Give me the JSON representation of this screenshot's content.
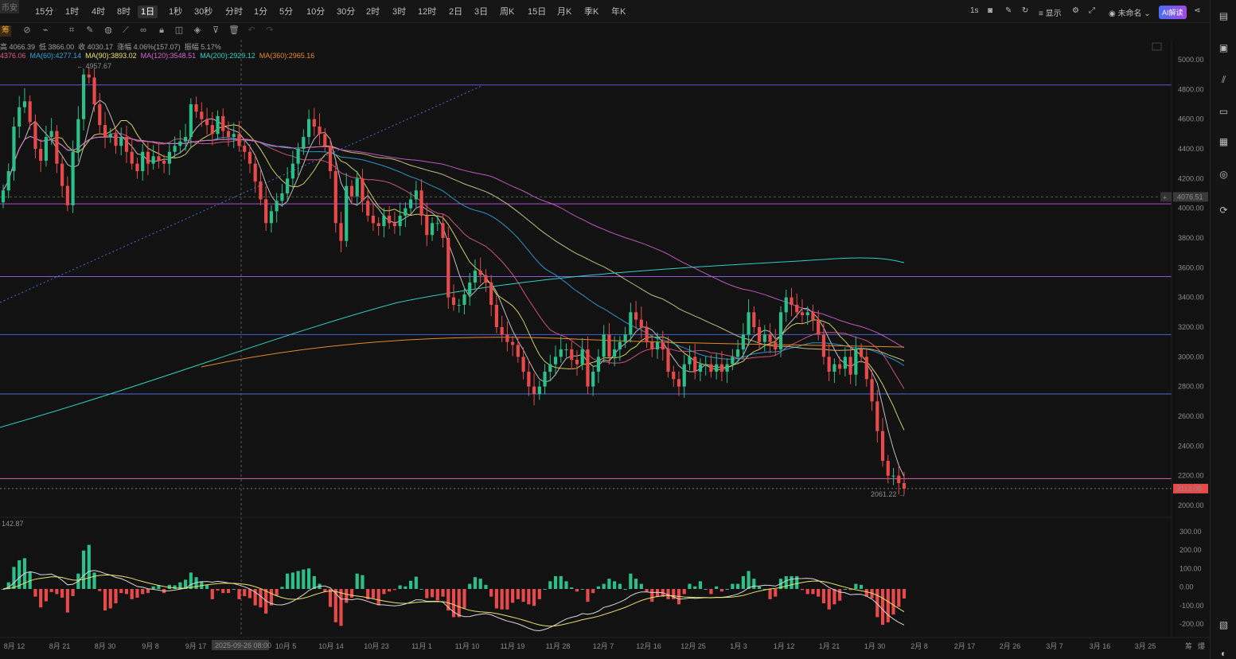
{
  "corner_label": "币安",
  "timeframes": [
    "15分",
    "1时",
    "4时",
    "8时",
    "1日",
    "1秒",
    "30秒",
    "分时",
    "1分",
    "5分",
    "10分",
    "30分",
    "2时",
    "3时",
    "12时",
    "2日",
    "3日",
    "周K",
    "15日",
    "月K",
    "季K",
    "年K"
  ],
  "active_timeframe": "1日",
  "right_tools": {
    "interval": "1s",
    "display": "显示",
    "layout_name": "未命名",
    "ai_label": "AI解读"
  },
  "chou_label": "筹",
  "ohlc_line": [
    "高 4066.39",
    "低 3866.00",
    "收 4030.17",
    "涨幅 4.06%(157.07)",
    "振幅 5.17%"
  ],
  "ma_line": [
    {
      "text": "4376.06",
      "color": "#e05a8a"
    },
    {
      "text": "MA(60):4277.14",
      "color": "#2fa3d6"
    },
    {
      "text": "MA(90):3893.02",
      "color": "#e8e36a"
    },
    {
      "text": "MA(120):3548.51",
      "color": "#d062d0"
    },
    {
      "text": "MA(200):2929.12",
      "color": "#2ed0c0"
    },
    {
      "text": "MA(360):2965.16",
      "color": "#e8882a"
    }
  ],
  "price_axis": [
    "5000.00",
    "4800.00",
    "4600.00",
    "4400.00",
    "4200.00",
    "4000.00",
    "3800.00",
    "3600.00",
    "3400.00",
    "3200.00",
    "3000.00",
    "2800.00",
    "2600.00",
    "2400.00",
    "2200.00",
    "2000.00"
  ],
  "price_tags": {
    "hover_price": "4076.51",
    "current_price": "2113.06"
  },
  "annotations": {
    "high": "4957.67",
    "low": "2061.22"
  },
  "crosshair_time": "2025-09-26 08:00",
  "macd_label": "142.87",
  "macd_axis": [
    "300.00",
    "200.00",
    "100.00",
    "0.00",
    "-100.00",
    "-200.00"
  ],
  "date_axis": [
    "8月 12",
    "8月 21",
    "8月 30",
    "9月 8",
    "9月 17",
    "10月 5",
    "10月 14",
    "10月 23",
    "11月 1",
    "11月 10",
    "11月 19",
    "11月 28",
    "12月 7",
    "12月 16",
    "12月 25",
    "1月 3",
    "1月 12",
    "1月 21",
    "1月 30",
    "2月 8",
    "2月 17",
    "2月 26",
    "3月 7",
    "3月 16",
    "3月 25"
  ],
  "bottom_right": [
    "筹",
    "爆"
  ],
  "colors": {
    "up": "#2bc08a",
    "down": "#e84a4a",
    "bg": "#121212"
  },
  "chart_data": {
    "type": "candlestick",
    "x_range": [
      "8月 8",
      "2月 3"
    ],
    "ylim": [
      2000,
      5000
    ],
    "horizontal_levels": [
      4830,
      4030,
      3540,
      3150,
      2750,
      2180
    ],
    "candles_close": [
      4120,
      4250,
      4550,
      4680,
      4720,
      4580,
      4400,
      4320,
      4480,
      4520,
      4300,
      4150,
      4020,
      4380,
      4600,
      4900,
      4880,
      4700,
      4560,
      4480,
      4500,
      4420,
      4480,
      4380,
      4300,
      4250,
      4380,
      4300,
      4350,
      4320,
      4300,
      4380,
      4420,
      4450,
      4480,
      4700,
      4650,
      4600,
      4560,
      4500,
      4620,
      4520,
      4480,
      4500,
      4420,
      4380,
      4300,
      4180,
      4060,
      3900,
      3980,
      4050,
      4100,
      4200,
      4300,
      4400,
      4480,
      4600,
      4550,
      4500,
      4420,
      4250,
      3900,
      3780,
      4150,
      4080,
      4200,
      4050,
      3950,
      3900,
      3880,
      3950,
      3900,
      3880,
      3950,
      4000,
      4060,
      4120,
      3950,
      3820,
      3900,
      3900,
      3800,
      3400,
      3350,
      3350,
      3420,
      3500,
      3580,
      3550,
      3500,
      3350,
      3200,
      3150,
      3100,
      3080,
      3000,
      2900,
      2800,
      2750,
      2800,
      2900,
      2950,
      3000,
      3050,
      3050,
      2980,
      2950,
      3050,
      2800,
      2900,
      3000,
      3150,
      3000,
      3050,
      3100,
      3150,
      3300,
      3250,
      3200,
      3100,
      3050,
      3100,
      3050,
      2900,
      2850,
      2800,
      2950,
      3000,
      2900,
      2950,
      2950,
      2900,
      2950,
      2900,
      2950,
      3000,
      3050,
      3150,
      3300,
      3200,
      3100,
      3150,
      3100,
      3050,
      3300,
      3400,
      3350,
      3300,
      3280,
      3300,
      3250,
      3150,
      3000,
      2900,
      2950,
      2920,
      3000,
      2880,
      3050,
      3000,
      2850,
      2700,
      2500,
      2300,
      2200,
      2200,
      2150,
      2113.06
    ]
  }
}
